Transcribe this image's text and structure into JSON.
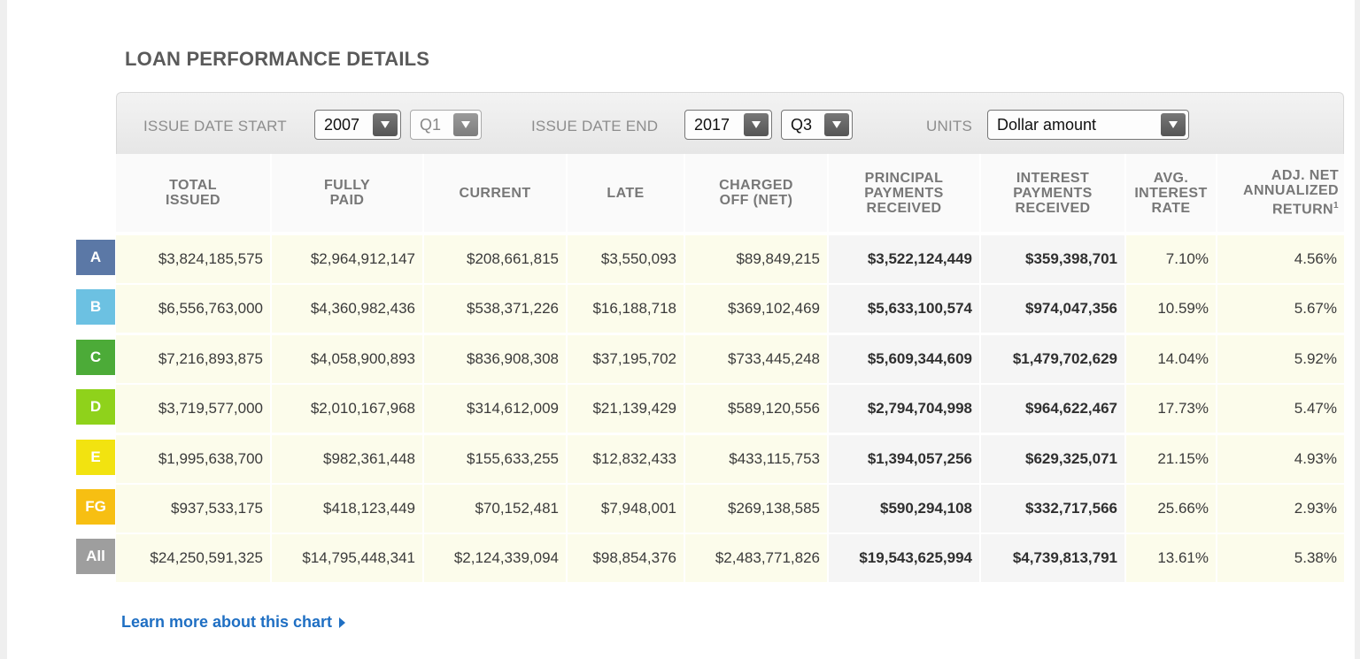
{
  "title": "LOAN PERFORMANCE DETAILS",
  "filters": {
    "issue_start_label": "ISSUE DATE START",
    "issue_start_year": "2007",
    "issue_start_quarter": "Q1",
    "issue_end_label": "ISSUE DATE END",
    "issue_end_year": "2017",
    "issue_end_quarter": "Q3",
    "units_label": "UNITS",
    "units_value": "Dollar amount"
  },
  "columns": [
    {
      "line1": "TOTAL",
      "line2": "ISSUED",
      "line3": ""
    },
    {
      "line1": "FULLY",
      "line2": "PAID",
      "line3": ""
    },
    {
      "line1": "CURRENT",
      "line2": "",
      "line3": ""
    },
    {
      "line1": "LATE",
      "line2": "",
      "line3": ""
    },
    {
      "line1": "CHARGED",
      "line2": "OFF (NET)",
      "line3": ""
    },
    {
      "line1": "PRINCIPAL",
      "line2": "PAYMENTS",
      "line3": "RECEIVED"
    },
    {
      "line1": "INTEREST",
      "line2": "PAYMENTS",
      "line3": "RECEIVED"
    },
    {
      "line1": "AVG.",
      "line2": "INTEREST",
      "line3": "RATE"
    },
    {
      "line1": "ADJ. NET",
      "line2": "ANNUALIZED",
      "line3": "RETURN",
      "sup": "1"
    }
  ],
  "grades": [
    {
      "grade": "A",
      "color": "#5b78a6"
    },
    {
      "grade": "B",
      "color": "#6cc1e2"
    },
    {
      "grade": "C",
      "color": "#4cab38"
    },
    {
      "grade": "D",
      "color": "#8fd21b"
    },
    {
      "grade": "E",
      "color": "#f2e310"
    },
    {
      "grade": "FG",
      "color": "#f7bf12"
    },
    {
      "grade": "All",
      "color": "#9e9e9e"
    }
  ],
  "rows": [
    [
      "$3,824,185,575",
      "$2,964,912,147",
      "$208,661,815",
      "$3,550,093",
      "$89,849,215",
      "$3,522,124,449",
      "$359,398,701",
      "7.10%",
      "4.56%"
    ],
    [
      "$6,556,763,000",
      "$4,360,982,436",
      "$538,371,226",
      "$16,188,718",
      "$369,102,469",
      "$5,633,100,574",
      "$974,047,356",
      "10.59%",
      "5.67%"
    ],
    [
      "$7,216,893,875",
      "$4,058,900,893",
      "$836,908,308",
      "$37,195,702",
      "$733,445,248",
      "$5,609,344,609",
      "$1,479,702,629",
      "14.04%",
      "5.92%"
    ],
    [
      "$3,719,577,000",
      "$2,010,167,968",
      "$314,612,009",
      "$21,139,429",
      "$589,120,556",
      "$2,794,704,998",
      "$964,622,467",
      "17.73%",
      "5.47%"
    ],
    [
      "$1,995,638,700",
      "$982,361,448",
      "$155,633,255",
      "$12,832,433",
      "$433,115,753",
      "$1,394,057,256",
      "$629,325,071",
      "21.15%",
      "4.93%"
    ],
    [
      "$937,533,175",
      "$418,123,449",
      "$70,152,481",
      "$7,948,001",
      "$269,138,585",
      "$590,294,108",
      "$332,717,566",
      "25.66%",
      "2.93%"
    ],
    [
      "$24,250,591,325",
      "$14,795,448,341",
      "$2,124,339,094",
      "$98,854,376",
      "$2,483,771,826",
      "$19,543,625,994",
      "$4,739,813,791",
      "13.61%",
      "5.38%"
    ]
  ],
  "learn_more": "Learn more about this chart"
}
